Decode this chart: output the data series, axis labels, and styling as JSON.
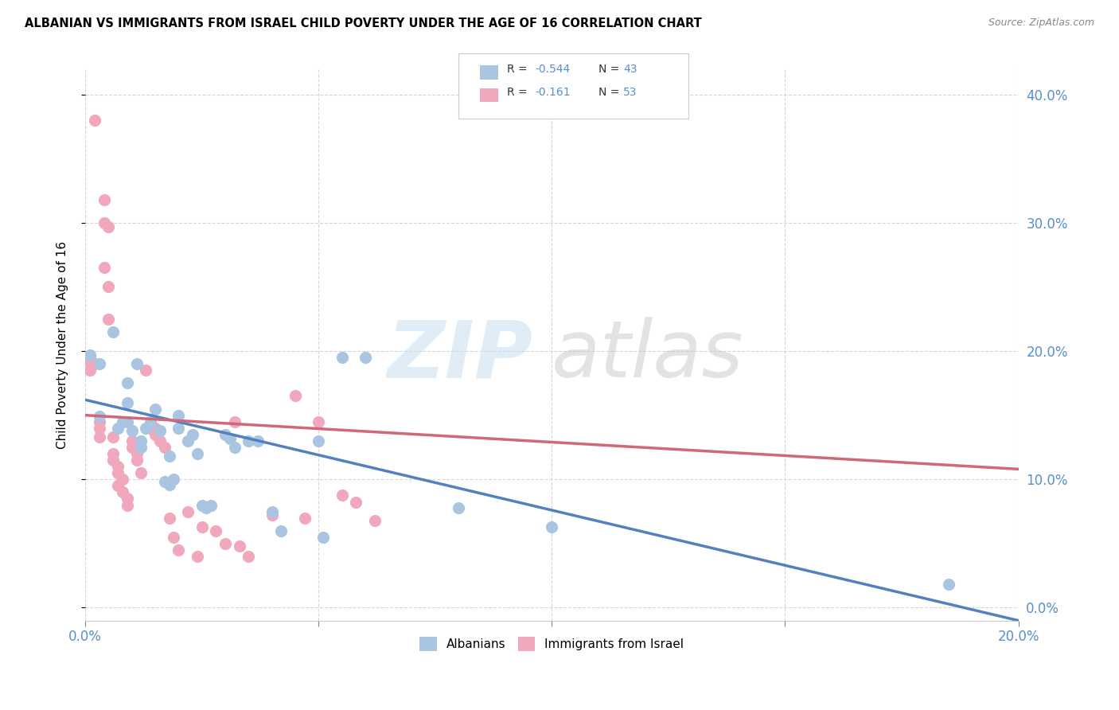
{
  "title": "ALBANIAN VS IMMIGRANTS FROM ISRAEL CHILD POVERTY UNDER THE AGE OF 16 CORRELATION CHART",
  "source": "Source: ZipAtlas.com",
  "ylabel": "Child Poverty Under the Age of 16",
  "xlim": [
    0.0,
    0.2
  ],
  "ylim": [
    -0.01,
    0.42
  ],
  "yticks": [
    0.0,
    0.1,
    0.2,
    0.3,
    0.4
  ],
  "ytick_labels_right": [
    "0.0%",
    "10.0%",
    "20.0%",
    "30.0%",
    "40.0%"
  ],
  "blue_color": "#aac5e2",
  "pink_color": "#f2a8bc",
  "line_blue_color": "#5580c0",
  "line_pink_color": "#d06878",
  "blue_scatter": [
    [
      0.001,
      0.197
    ],
    [
      0.003,
      0.19
    ],
    [
      0.006,
      0.215
    ],
    [
      0.007,
      0.14
    ],
    [
      0.008,
      0.145
    ],
    [
      0.009,
      0.175
    ],
    [
      0.009,
      0.145
    ],
    [
      0.009,
      0.16
    ],
    [
      0.011,
      0.19
    ],
    [
      0.012,
      0.13
    ],
    [
      0.013,
      0.14
    ],
    [
      0.014,
      0.145
    ],
    [
      0.015,
      0.155
    ],
    [
      0.016,
      0.138
    ],
    [
      0.017,
      0.098
    ],
    [
      0.018,
      0.096
    ],
    [
      0.018,
      0.118
    ],
    [
      0.019,
      0.1
    ],
    [
      0.02,
      0.15
    ],
    [
      0.02,
      0.14
    ],
    [
      0.022,
      0.13
    ],
    [
      0.023,
      0.135
    ],
    [
      0.024,
      0.12
    ],
    [
      0.025,
      0.08
    ],
    [
      0.026,
      0.078
    ],
    [
      0.027,
      0.08
    ],
    [
      0.03,
      0.135
    ],
    [
      0.031,
      0.132
    ],
    [
      0.032,
      0.125
    ],
    [
      0.035,
      0.13
    ],
    [
      0.037,
      0.13
    ],
    [
      0.04,
      0.075
    ],
    [
      0.042,
      0.06
    ],
    [
      0.05,
      0.13
    ],
    [
      0.051,
      0.055
    ],
    [
      0.055,
      0.195
    ],
    [
      0.06,
      0.195
    ],
    [
      0.08,
      0.078
    ],
    [
      0.1,
      0.063
    ],
    [
      0.185,
      0.018
    ],
    [
      0.01,
      0.138
    ],
    [
      0.012,
      0.125
    ],
    [
      0.003,
      0.149
    ]
  ],
  "pink_scatter": [
    [
      0.001,
      0.195
    ],
    [
      0.001,
      0.192
    ],
    [
      0.001,
      0.185
    ],
    [
      0.002,
      0.19
    ],
    [
      0.002,
      0.38
    ],
    [
      0.003,
      0.145
    ],
    [
      0.003,
      0.14
    ],
    [
      0.003,
      0.133
    ],
    [
      0.004,
      0.318
    ],
    [
      0.004,
      0.3
    ],
    [
      0.004,
      0.265
    ],
    [
      0.005,
      0.297
    ],
    [
      0.005,
      0.25
    ],
    [
      0.005,
      0.225
    ],
    [
      0.006,
      0.133
    ],
    [
      0.006,
      0.12
    ],
    [
      0.006,
      0.115
    ],
    [
      0.007,
      0.11
    ],
    [
      0.007,
      0.105
    ],
    [
      0.007,
      0.095
    ],
    [
      0.008,
      0.1
    ],
    [
      0.008,
      0.09
    ],
    [
      0.009,
      0.085
    ],
    [
      0.009,
      0.08
    ],
    [
      0.01,
      0.13
    ],
    [
      0.01,
      0.125
    ],
    [
      0.011,
      0.12
    ],
    [
      0.011,
      0.115
    ],
    [
      0.012,
      0.105
    ],
    [
      0.013,
      0.185
    ],
    [
      0.014,
      0.14
    ],
    [
      0.015,
      0.14
    ],
    [
      0.015,
      0.135
    ],
    [
      0.016,
      0.13
    ],
    [
      0.017,
      0.125
    ],
    [
      0.018,
      0.07
    ],
    [
      0.019,
      0.055
    ],
    [
      0.02,
      0.045
    ],
    [
      0.022,
      0.075
    ],
    [
      0.024,
      0.04
    ],
    [
      0.025,
      0.063
    ],
    [
      0.028,
      0.06
    ],
    [
      0.03,
      0.05
    ],
    [
      0.032,
      0.145
    ],
    [
      0.033,
      0.048
    ],
    [
      0.035,
      0.04
    ],
    [
      0.04,
      0.072
    ],
    [
      0.045,
      0.165
    ],
    [
      0.047,
      0.07
    ],
    [
      0.05,
      0.145
    ],
    [
      0.055,
      0.088
    ],
    [
      0.058,
      0.082
    ],
    [
      0.062,
      0.068
    ]
  ],
  "blue_line_x": [
    0.0,
    0.2
  ],
  "blue_line_y": [
    0.162,
    -0.01
  ],
  "pink_line_x": [
    0.0,
    0.2
  ],
  "pink_line_y": [
    0.15,
    0.108
  ],
  "legend_items": [
    {
      "color": "#aac5e2",
      "r": "R = ",
      "r_val": "-0.544",
      "n": "N = ",
      "n_val": "43"
    },
    {
      "color": "#f2a8bc",
      "r": "R =  ",
      "r_val": "-0.161",
      "n": "N = ",
      "n_val": "53"
    }
  ]
}
